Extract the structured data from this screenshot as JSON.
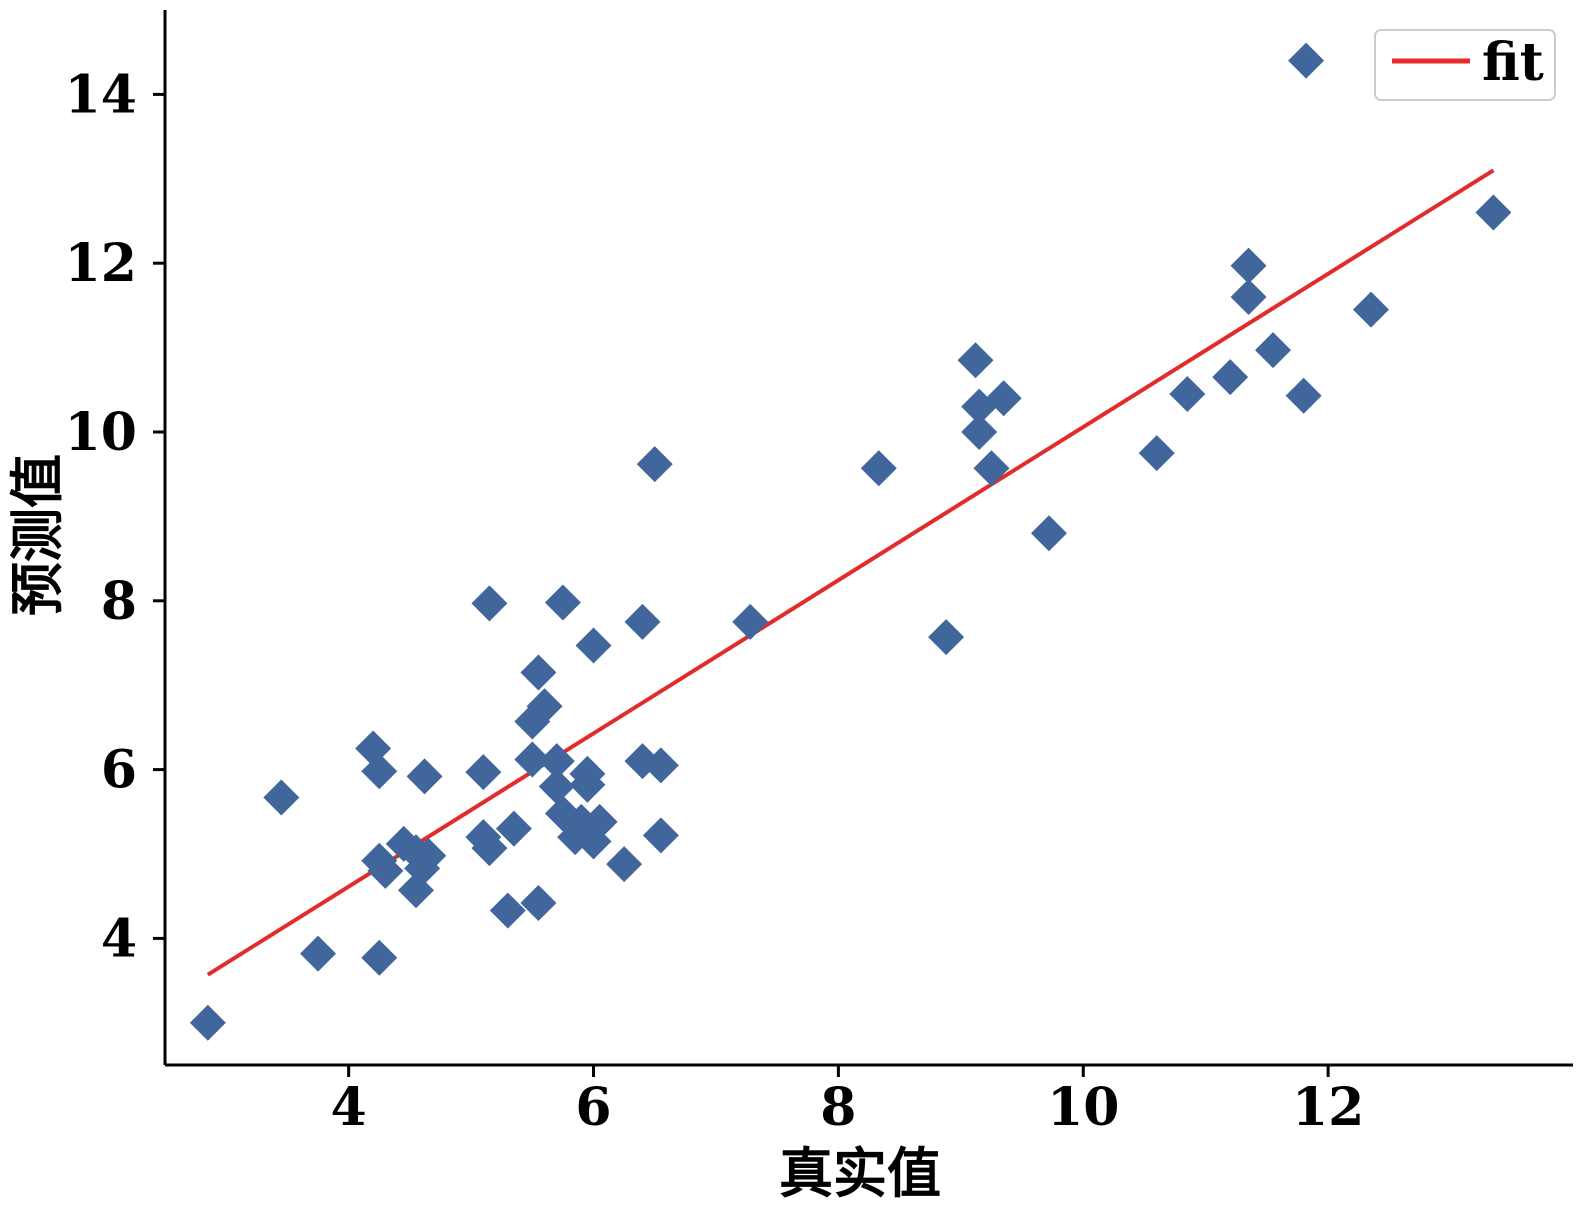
{
  "chart_data": {
    "type": "scatter",
    "title": "",
    "xlabel": "真实值",
    "ylabel": "预测值",
    "xlim": [
      2.5,
      14.0
    ],
    "ylim": [
      2.5,
      15.0
    ],
    "xticks": [
      4,
      6,
      8,
      10,
      12
    ],
    "yticks": [
      4,
      6,
      8,
      10,
      12,
      14
    ],
    "grid": false,
    "legend": {
      "position": "upper-right",
      "entries": [
        "fit"
      ]
    },
    "colors": {
      "points": "#41669b",
      "fit": "#e32b2b"
    },
    "series": [
      {
        "type": "scatter",
        "marker": "diamond",
        "points": [
          [
            2.85,
            3.0
          ],
          [
            3.45,
            5.67
          ],
          [
            3.75,
            3.82
          ],
          [
            4.2,
            6.25
          ],
          [
            4.25,
            5.98
          ],
          [
            4.25,
            3.77
          ],
          [
            4.25,
            4.92
          ],
          [
            4.3,
            4.8
          ],
          [
            4.45,
            5.12
          ],
          [
            4.55,
            5.02
          ],
          [
            4.55,
            4.57
          ],
          [
            4.6,
            4.83
          ],
          [
            4.65,
            4.98
          ],
          [
            4.62,
            5.92
          ],
          [
            5.1,
            5.97
          ],
          [
            5.1,
            5.2
          ],
          [
            5.15,
            5.07
          ],
          [
            5.15,
            7.97
          ],
          [
            5.3,
            4.33
          ],
          [
            5.35,
            5.3
          ],
          [
            5.5,
            6.57
          ],
          [
            5.5,
            6.12
          ],
          [
            5.55,
            4.42
          ],
          [
            5.55,
            7.15
          ],
          [
            5.6,
            6.75
          ],
          [
            5.7,
            6.1
          ],
          [
            5.75,
            7.98
          ],
          [
            5.7,
            5.8
          ],
          [
            5.75,
            5.48
          ],
          [
            5.85,
            5.2
          ],
          [
            5.9,
            5.38
          ],
          [
            5.95,
            5.82
          ],
          [
            5.95,
            5.95
          ],
          [
            6.0,
            5.15
          ],
          [
            6.05,
            5.38
          ],
          [
            6.0,
            7.47
          ],
          [
            6.25,
            4.88
          ],
          [
            6.4,
            6.1
          ],
          [
            6.4,
            7.75
          ],
          [
            6.5,
            9.62
          ],
          [
            6.55,
            6.05
          ],
          [
            6.55,
            5.22
          ],
          [
            7.28,
            7.75
          ],
          [
            8.33,
            9.57
          ],
          [
            8.88,
            7.57
          ],
          [
            9.12,
            10.85
          ],
          [
            9.15,
            10.3
          ],
          [
            9.15,
            10.0
          ],
          [
            9.25,
            9.57
          ],
          [
            9.35,
            10.4
          ],
          [
            9.72,
            8.8
          ],
          [
            10.6,
            9.75
          ],
          [
            10.85,
            10.45
          ],
          [
            11.2,
            10.65
          ],
          [
            11.35,
            11.97
          ],
          [
            11.35,
            11.6
          ],
          [
            11.55,
            10.97
          ],
          [
            11.8,
            10.43
          ],
          [
            11.82,
            14.4
          ],
          [
            12.35,
            11.45
          ],
          [
            13.35,
            12.6
          ]
        ]
      },
      {
        "name": "fit",
        "type": "line",
        "points": [
          [
            2.85,
            3.57
          ],
          [
            13.35,
            13.1
          ]
        ]
      }
    ]
  }
}
